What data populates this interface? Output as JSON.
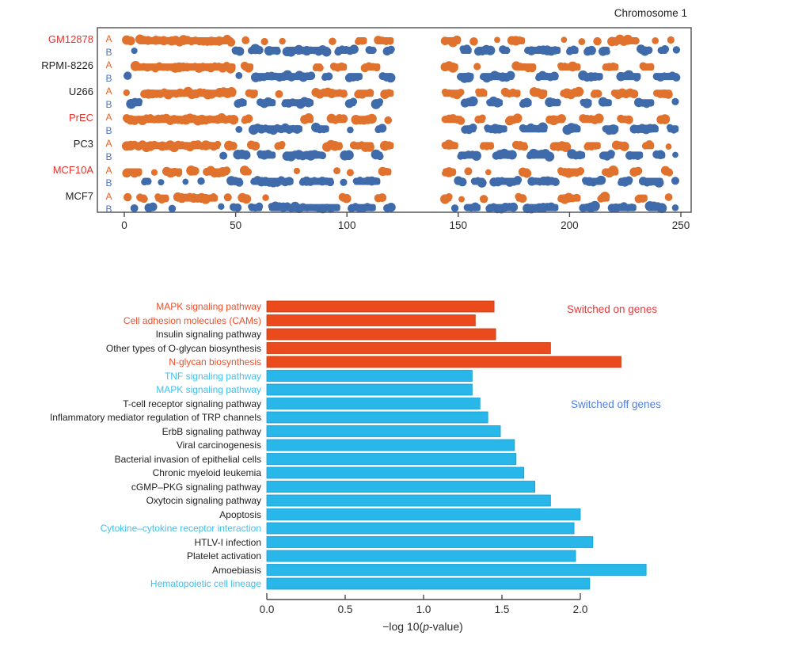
{
  "palette": {
    "track_a": "#E0722E",
    "track_b": "#3F6BAB",
    "bar_orange": "#EA4A1C",
    "bar_orange_edge": "#C63C10",
    "bar_cyan": "#29B6E8",
    "bar_cyan_edge": "#0E9FD6",
    "red_label": "#E7312B",
    "orange_label": "#EF4E29",
    "cyan_label": "#41C0EF",
    "black_text": "#1E1E1E",
    "letter_a": "#E2632B",
    "letter_b": "#4C74BE",
    "axis": "#4A4A4A",
    "axis_text": "#2B2B2B",
    "frame": "#58595B"
  },
  "chart_data": [
    {
      "id": "ab-compartment-tracks",
      "type": "area",
      "subtype": "genomic-ab-compartment-tracks",
      "title": "Chromosome 1",
      "x_ticks": [
        0,
        50,
        100,
        150,
        200,
        250
      ],
      "xlim": [
        0,
        250
      ],
      "centromere_gap": [
        121,
        143
      ],
      "row_labels": {
        "a": "A",
        "b": "B"
      },
      "series": [
        {
          "name": "GM12878",
          "name_color": "red",
          "A": [
            [
              0,
              4
            ],
            [
              6,
              49
            ],
            [
              53,
              56
            ],
            [
              62,
              64
            ],
            [
              70,
              72
            ],
            [
              92,
              95
            ],
            [
              104,
              109
            ],
            [
              113,
              121
            ],
            [
              143,
              151
            ],
            [
              156,
              158
            ],
            [
              166,
              169
            ],
            [
              173,
              180
            ],
            [
              196,
              199
            ],
            [
              204,
              207
            ],
            [
              211,
              214
            ],
            [
              218,
              231
            ],
            [
              237,
              240
            ],
            [
              244,
              247
            ]
          ],
          "B": [
            [
              3,
              6
            ],
            [
              49,
              53
            ],
            [
              56,
              62
            ],
            [
              64,
              70
            ],
            [
              72,
              92
            ],
            [
              95,
              104
            ],
            [
              109,
              113
            ],
            [
              117,
              121
            ],
            [
              151,
              156
            ],
            [
              158,
              166
            ],
            [
              169,
              173
            ],
            [
              180,
              196
            ],
            [
              199,
              204
            ],
            [
              207,
              211
            ],
            [
              214,
              218
            ],
            [
              231,
              237
            ],
            [
              240,
              244
            ],
            [
              247,
              249
            ]
          ]
        },
        {
          "name": "RPMI-8226",
          "name_color": "black",
          "A": [
            [
              4,
              50
            ],
            [
              53,
              58
            ],
            [
              85,
              89
            ],
            [
              93,
              100
            ],
            [
              107,
              115
            ],
            [
              143,
              150
            ],
            [
              157,
              160
            ],
            [
              175,
              185
            ],
            [
              195,
              205
            ],
            [
              215,
              222
            ],
            [
              232,
              238
            ]
          ],
          "B": [
            [
              0,
              3
            ],
            [
              50,
              53
            ],
            [
              58,
              85
            ],
            [
              89,
              93
            ],
            [
              100,
              107
            ],
            [
              115,
              121
            ],
            [
              150,
              157
            ],
            [
              160,
              175
            ],
            [
              185,
              195
            ],
            [
              205,
              215
            ],
            [
              222,
              232
            ],
            [
              238,
              249
            ]
          ]
        },
        {
          "name": "U266",
          "name_color": "black",
          "A": [
            [
              0,
              2
            ],
            [
              8,
              50
            ],
            [
              55,
              60
            ],
            [
              68,
              71
            ],
            [
              85,
              100
            ],
            [
              104,
              112
            ],
            [
              116,
              121
            ],
            [
              143,
              152
            ],
            [
              158,
              163
            ],
            [
              170,
              178
            ],
            [
              183,
              190
            ],
            [
              196,
              205
            ],
            [
              210,
              214
            ],
            [
              219,
              230
            ],
            [
              238,
              246
            ]
          ],
          "B": [
            [
              2,
              8
            ],
            [
              50,
              55
            ],
            [
              60,
              68
            ],
            [
              71,
              85
            ],
            [
              100,
              104
            ],
            [
              112,
              116
            ],
            [
              152,
              158
            ],
            [
              163,
              170
            ],
            [
              178,
              183
            ],
            [
              190,
              196
            ],
            [
              205,
              210
            ],
            [
              214,
              219
            ],
            [
              230,
              238
            ],
            [
              246,
              249
            ]
          ]
        },
        {
          "name": "PrEC",
          "name_color": "red",
          "A": [
            [
              0,
              50
            ],
            [
              53,
              57
            ],
            [
              80,
              85
            ],
            [
              92,
              100
            ],
            [
              103,
              113
            ],
            [
              117,
              120
            ],
            [
              143,
              152
            ],
            [
              158,
              162
            ],
            [
              172,
              178
            ],
            [
              190,
              198
            ],
            [
              205,
              215
            ],
            [
              222,
              228
            ],
            [
              240,
              244
            ]
          ],
          "B": [
            [
              50,
              53
            ],
            [
              57,
              80
            ],
            [
              85,
              92
            ],
            [
              100,
              103
            ],
            [
              113,
              117
            ],
            [
              152,
              158
            ],
            [
              162,
              172
            ],
            [
              178,
              190
            ],
            [
              198,
              205
            ],
            [
              215,
              222
            ],
            [
              228,
              240
            ],
            [
              244,
              249
            ]
          ]
        },
        {
          "name": "PC3",
          "name_color": "black",
          "A": [
            [
              0,
              43
            ],
            [
              46,
              50
            ],
            [
              56,
              60
            ],
            [
              68,
              72
            ],
            [
              90,
              98
            ],
            [
              102,
              112
            ],
            [
              116,
              121
            ],
            [
              143,
              150
            ],
            [
              160,
              166
            ],
            [
              175,
              181
            ],
            [
              192,
              200
            ],
            [
              207,
              214
            ],
            [
              220,
              226
            ],
            [
              233,
              238
            ],
            [
              243,
              246
            ]
          ],
          "B": [
            [
              43,
              46
            ],
            [
              50,
              56
            ],
            [
              60,
              68
            ],
            [
              72,
              90
            ],
            [
              98,
              102
            ],
            [
              112,
              116
            ],
            [
              150,
              160
            ],
            [
              166,
              175
            ],
            [
              181,
              192
            ],
            [
              200,
              207
            ],
            [
              214,
              220
            ],
            [
              226,
              233
            ],
            [
              238,
              243
            ],
            [
              246,
              249
            ]
          ]
        },
        {
          "name": "MCF10A",
          "name_color": "red",
          "A": [
            [
              0,
              8
            ],
            [
              12,
              15
            ],
            [
              18,
              26
            ],
            [
              29,
              33
            ],
            [
              36,
              47
            ],
            [
              53,
              57
            ],
            [
              76,
              79
            ],
            [
              94,
              97
            ],
            [
              100,
              103
            ],
            [
              115,
              120
            ],
            [
              143,
              149
            ],
            [
              153,
              156
            ],
            [
              162,
              165
            ],
            [
              178,
              182
            ],
            [
              195,
              206
            ],
            [
              215,
              222
            ],
            [
              228,
              232
            ],
            [
              242,
              246
            ]
          ],
          "B": [
            [
              8,
              12
            ],
            [
              15,
              18
            ],
            [
              26,
              29
            ],
            [
              33,
              36
            ],
            [
              47,
              53
            ],
            [
              57,
              76
            ],
            [
              79,
              94
            ],
            [
              97,
              100
            ],
            [
              103,
              115
            ],
            [
              149,
              153
            ],
            [
              156,
              162
            ],
            [
              165,
              178
            ],
            [
              182,
              195
            ],
            [
              206,
              215
            ],
            [
              222,
              228
            ],
            [
              232,
              242
            ],
            [
              246,
              249
            ]
          ]
        },
        {
          "name": "MCF7",
          "name_color": "black",
          "A": [
            [
              0,
              3
            ],
            [
              6,
              10
            ],
            [
              14,
              20
            ],
            [
              23,
              42
            ],
            [
              45,
              48
            ],
            [
              52,
              56
            ],
            [
              62,
              65
            ],
            [
              97,
              101
            ],
            [
              113,
              117
            ],
            [
              143,
              147
            ],
            [
              150,
              153
            ],
            [
              160,
              163
            ],
            [
              176,
              180
            ],
            [
              195,
              205
            ],
            [
              213,
              218
            ],
            [
              230,
              235
            ],
            [
              243,
              246
            ]
          ],
          "B": [
            [
              3,
              6
            ],
            [
              10,
              14
            ],
            [
              20,
              23
            ],
            [
              42,
              45
            ],
            [
              48,
              52
            ],
            [
              56,
              62
            ],
            [
              65,
              97
            ],
            [
              101,
              113
            ],
            [
              117,
              121
            ],
            [
              147,
              150
            ],
            [
              153,
              160
            ],
            [
              163,
              176
            ],
            [
              180,
              195
            ],
            [
              205,
              213
            ],
            [
              218,
              230
            ],
            [
              235,
              243
            ],
            [
              246,
              249
            ]
          ]
        }
      ]
    },
    {
      "id": "pathway-enrichment",
      "type": "bar",
      "orientation": "horizontal",
      "x_ticks": [
        "0.0",
        "0.5",
        "1.0",
        "1.5",
        "2.0"
      ],
      "xlim": [
        0,
        2.0
      ],
      "xlabel_parts": {
        "prefix": "−log 10(",
        "italic": "p",
        "suffix": "-value)"
      },
      "bars": [
        {
          "label": "MAPK signaling pathway",
          "value": 1.45,
          "group": "on",
          "label_color": "orange"
        },
        {
          "label": "Cell adhesion molecules (CAMs)",
          "value": 1.33,
          "group": "on",
          "label_color": "orange"
        },
        {
          "label": "Insulin signaling pathway",
          "value": 1.46,
          "group": "on",
          "label_color": "black"
        },
        {
          "label": "Other types of O-glycan biosynthesis",
          "value": 1.81,
          "group": "on",
          "label_color": "black"
        },
        {
          "label": "N-glycan biosynthesis",
          "value": 2.26,
          "group": "on",
          "label_color": "orange"
        },
        {
          "label": "TNF signaling pathway",
          "value": 1.31,
          "group": "off",
          "label_color": "cyan"
        },
        {
          "label": "MAPK signaling pathway",
          "value": 1.31,
          "group": "off",
          "label_color": "cyan"
        },
        {
          "label": "T-cell receptor signaling pathway",
          "value": 1.36,
          "group": "off",
          "label_color": "black"
        },
        {
          "label": "Inflammatory mediator regulation of TRP channels",
          "value": 1.41,
          "group": "off",
          "label_color": "black"
        },
        {
          "label": "ErbB signaling pathway",
          "value": 1.49,
          "group": "off",
          "label_color": "black"
        },
        {
          "label": "Viral carcinogenesis",
          "value": 1.58,
          "group": "off",
          "label_color": "black"
        },
        {
          "label": "Bacterial invasion of epithelial cells",
          "value": 1.59,
          "group": "off",
          "label_color": "black"
        },
        {
          "label": "Chronic myeloid leukemia",
          "value": 1.64,
          "group": "off",
          "label_color": "black"
        },
        {
          "label": "cGMP–PKG signaling pathway",
          "value": 1.71,
          "group": "off",
          "label_color": "black"
        },
        {
          "label": "Oxytocin signaling pathway",
          "value": 1.81,
          "group": "off",
          "label_color": "black"
        },
        {
          "label": "Apoptosis",
          "value": 2.0,
          "group": "off",
          "label_color": "black"
        },
        {
          "label": "Cytokine–cytokine receptor interaction",
          "value": 1.96,
          "group": "off",
          "label_color": "cyan"
        },
        {
          "label": "HTLV-I infection",
          "value": 2.08,
          "group": "off",
          "label_color": "black"
        },
        {
          "label": "Platelet activation",
          "value": 1.97,
          "group": "off",
          "label_color": "black"
        },
        {
          "label": "Amoebiasis",
          "value": 2.42,
          "group": "off",
          "label_color": "black"
        },
        {
          "label": "Hematopoietic cell lineage",
          "value": 2.06,
          "group": "off",
          "label_color": "cyan"
        }
      ],
      "annotations": {
        "switched_on": {
          "text": "Switched on genes",
          "color": "#E8393B"
        },
        "switched_off": {
          "text": "Switched off genes",
          "color": "#4E80E2"
        }
      }
    }
  ]
}
